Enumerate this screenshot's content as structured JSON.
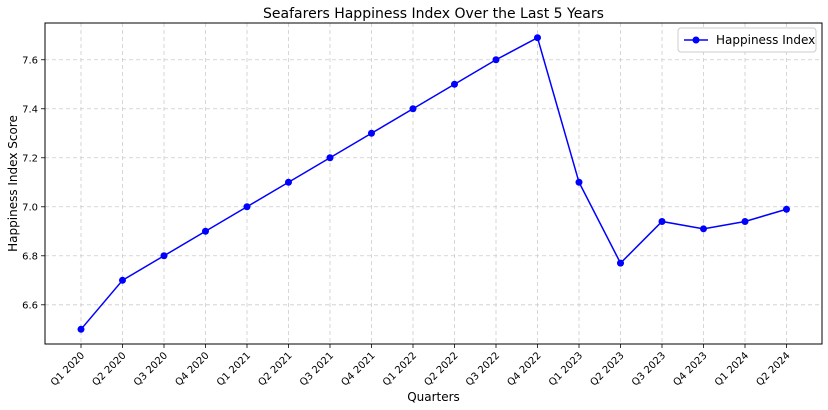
{
  "chart_data": {
    "type": "line",
    "title": "Seafarers Happiness Index Over the Last 5 Years",
    "xlabel": "Quarters",
    "ylabel": "Happiness Index Score",
    "categories": [
      "Q1 2020",
      "Q2 2020",
      "Q3 2020",
      "Q4 2020",
      "Q1 2021",
      "Q2 2021",
      "Q3 2021",
      "Q4 2021",
      "Q1 2022",
      "Q2 2022",
      "Q3 2022",
      "Q4 2022",
      "Q1 2023",
      "Q2 2023",
      "Q3 2023",
      "Q4 2023",
      "Q1 2024",
      "Q2 2024"
    ],
    "series": [
      {
        "name": "Happiness Index",
        "color": "#0000ff",
        "values": [
          6.5,
          6.7,
          6.8,
          6.9,
          7.0,
          7.1,
          7.2,
          7.3,
          7.4,
          7.5,
          7.6,
          7.69,
          7.1,
          6.77,
          6.94,
          6.91,
          6.94,
          6.99
        ]
      }
    ],
    "ylim": [
      6.44,
      7.75
    ],
    "yticks": [
      6.6,
      6.8,
      7.0,
      7.2,
      7.4,
      7.6
    ],
    "ytick_labels": [
      "6.6",
      "6.8",
      "7.0",
      "7.2",
      "7.4",
      "7.6"
    ],
    "grid": true,
    "legend_position": "top-right"
  }
}
